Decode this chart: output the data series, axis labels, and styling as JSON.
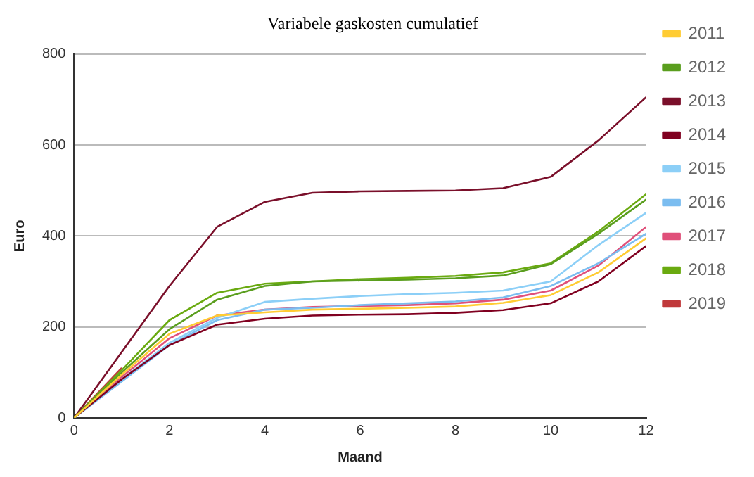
{
  "chart_data": {
    "type": "line",
    "title": "Variabele gaskosten cumulatief",
    "xlabel": "Maand",
    "ylabel": "Euro",
    "x": [
      0,
      1,
      2,
      3,
      4,
      5,
      6,
      7,
      8,
      9,
      10,
      11,
      12
    ],
    "xlim": [
      0,
      12
    ],
    "xticks": [
      0,
      2,
      4,
      6,
      8,
      10,
      12
    ],
    "ylim": [
      0,
      800
    ],
    "yticks": [
      0,
      200,
      400,
      600,
      800
    ],
    "grid": "y",
    "legend": "right",
    "marker": "none",
    "series": [
      {
        "name": "2011",
        "color": "#ffcc33",
        "values": [
          0,
          95,
          185,
          225,
          232,
          238,
          240,
          242,
          245,
          253,
          270,
          320,
          395
        ]
      },
      {
        "name": "2012",
        "color": "#5a9e1e",
        "values": [
          0,
          100,
          195,
          260,
          290,
          300,
          302,
          304,
          307,
          313,
          338,
          405,
          480
        ]
      },
      {
        "name": "2013",
        "color": "#7a0f2a",
        "values": [
          0,
          145,
          290,
          420,
          475,
          495,
          498,
          499,
          500,
          505,
          530,
          610,
          705
        ]
      },
      {
        "name": "2014",
        "color": "#800020",
        "values": [
          0,
          85,
          160,
          205,
          218,
          225,
          227,
          228,
          231,
          237,
          252,
          300,
          378
        ]
      },
      {
        "name": "2015",
        "color": "#8ccff7",
        "values": [
          0,
          85,
          165,
          220,
          255,
          262,
          268,
          272,
          275,
          280,
          300,
          380,
          451
        ]
      },
      {
        "name": "2016",
        "color": "#7bbdf0",
        "values": [
          0,
          80,
          160,
          215,
          238,
          242,
          248,
          252,
          256,
          265,
          290,
          340,
          405
        ]
      },
      {
        "name": "2017",
        "color": "#e0507a",
        "values": [
          0,
          90,
          175,
          225,
          238,
          244,
          246,
          248,
          252,
          260,
          280,
          335,
          420
        ]
      },
      {
        "name": "2018",
        "color": "#6aaa10",
        "values": [
          0,
          105,
          215,
          275,
          295,
          300,
          305,
          308,
          312,
          320,
          340,
          410,
          492
        ]
      },
      {
        "name": "2019",
        "color": "#c0393b",
        "values": [
          0,
          110,
          null,
          null,
          null,
          null,
          null,
          null,
          null,
          null,
          null,
          null,
          null
        ]
      }
    ]
  }
}
